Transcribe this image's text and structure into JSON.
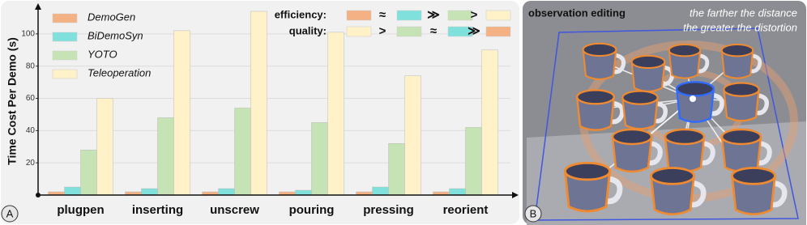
{
  "chart_data": {
    "type": "bar",
    "y_label": "Time Cost Per Demo (s)",
    "categories": [
      "plugpen",
      "inserting",
      "unscrew",
      "pouring",
      "pressing",
      "reorient"
    ],
    "series": [
      {
        "name": "DemoGen",
        "color": "#f4b183",
        "values": [
          2,
          2,
          2,
          2,
          2,
          2
        ]
      },
      {
        "name": "BiDemoSyn",
        "color": "#7fe0dc",
        "values": [
          5,
          4,
          4,
          3,
          5,
          4
        ]
      },
      {
        "name": "YOTO",
        "color": "#c6e3b5",
        "values": [
          28,
          48,
          54,
          45,
          32,
          42
        ]
      },
      {
        "name": "Teleoperation",
        "color": "#fff2c8",
        "values": [
          60,
          102,
          114,
          101,
          74,
          90
        ]
      }
    ],
    "ylim": [
      0,
      115
    ],
    "yticks": [
      20,
      40,
      60,
      80,
      100
    ],
    "grid": true,
    "legend": "top-left",
    "comparisons": [
      {
        "label": "efficiency:",
        "colors": [
          "#f4b183",
          "#7fe0dc",
          "#c6e3b5",
          "#fff2c8"
        ],
        "symbols": [
          "≈",
          "≫",
          ">"
        ]
      },
      {
        "label": "quality:",
        "colors": [
          "#fff2c8",
          "#c6e3b5",
          "#7fe0dc",
          "#f4b183"
        ],
        "symbols": [
          ">",
          "≈",
          "≫"
        ]
      }
    ]
  },
  "panel_labels": [
    "A",
    "B"
  ],
  "photo": {
    "title": "observation editing",
    "caption": [
      "the farther the distance",
      "the greater the distortion"
    ]
  }
}
